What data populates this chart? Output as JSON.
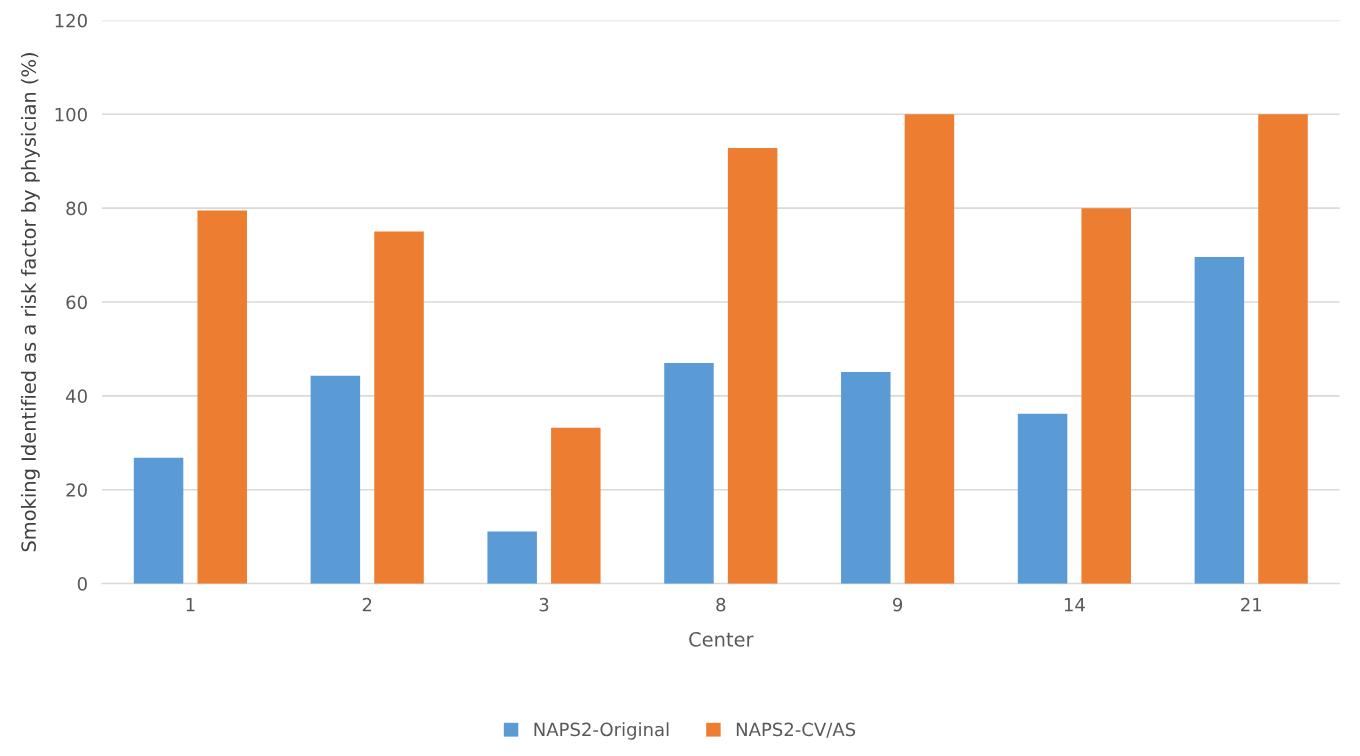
{
  "chart_data": {
    "type": "bar",
    "xlabel": "Center",
    "ylabel": "Smoking Identified as a risk factor by physician (%)",
    "categories": [
      "1",
      "2",
      "3",
      "8",
      "9",
      "14",
      "21"
    ],
    "series": [
      {
        "name": "NAPS2-Original",
        "color": "#5b9bd5",
        "values": [
          26.8,
          44.3,
          11.1,
          47,
          45.1,
          36.2,
          69.6
        ]
      },
      {
        "name": "NAPS2-CV/AS",
        "color": "#ed7d31",
        "values": [
          79.5,
          75,
          33.2,
          92.8,
          100,
          80,
          100
        ]
      }
    ],
    "ylim": [
      0,
      120
    ],
    "yticks": [
      0,
      20,
      40,
      60,
      80,
      100,
      120
    ],
    "grid": "y",
    "legend": "bottom"
  }
}
